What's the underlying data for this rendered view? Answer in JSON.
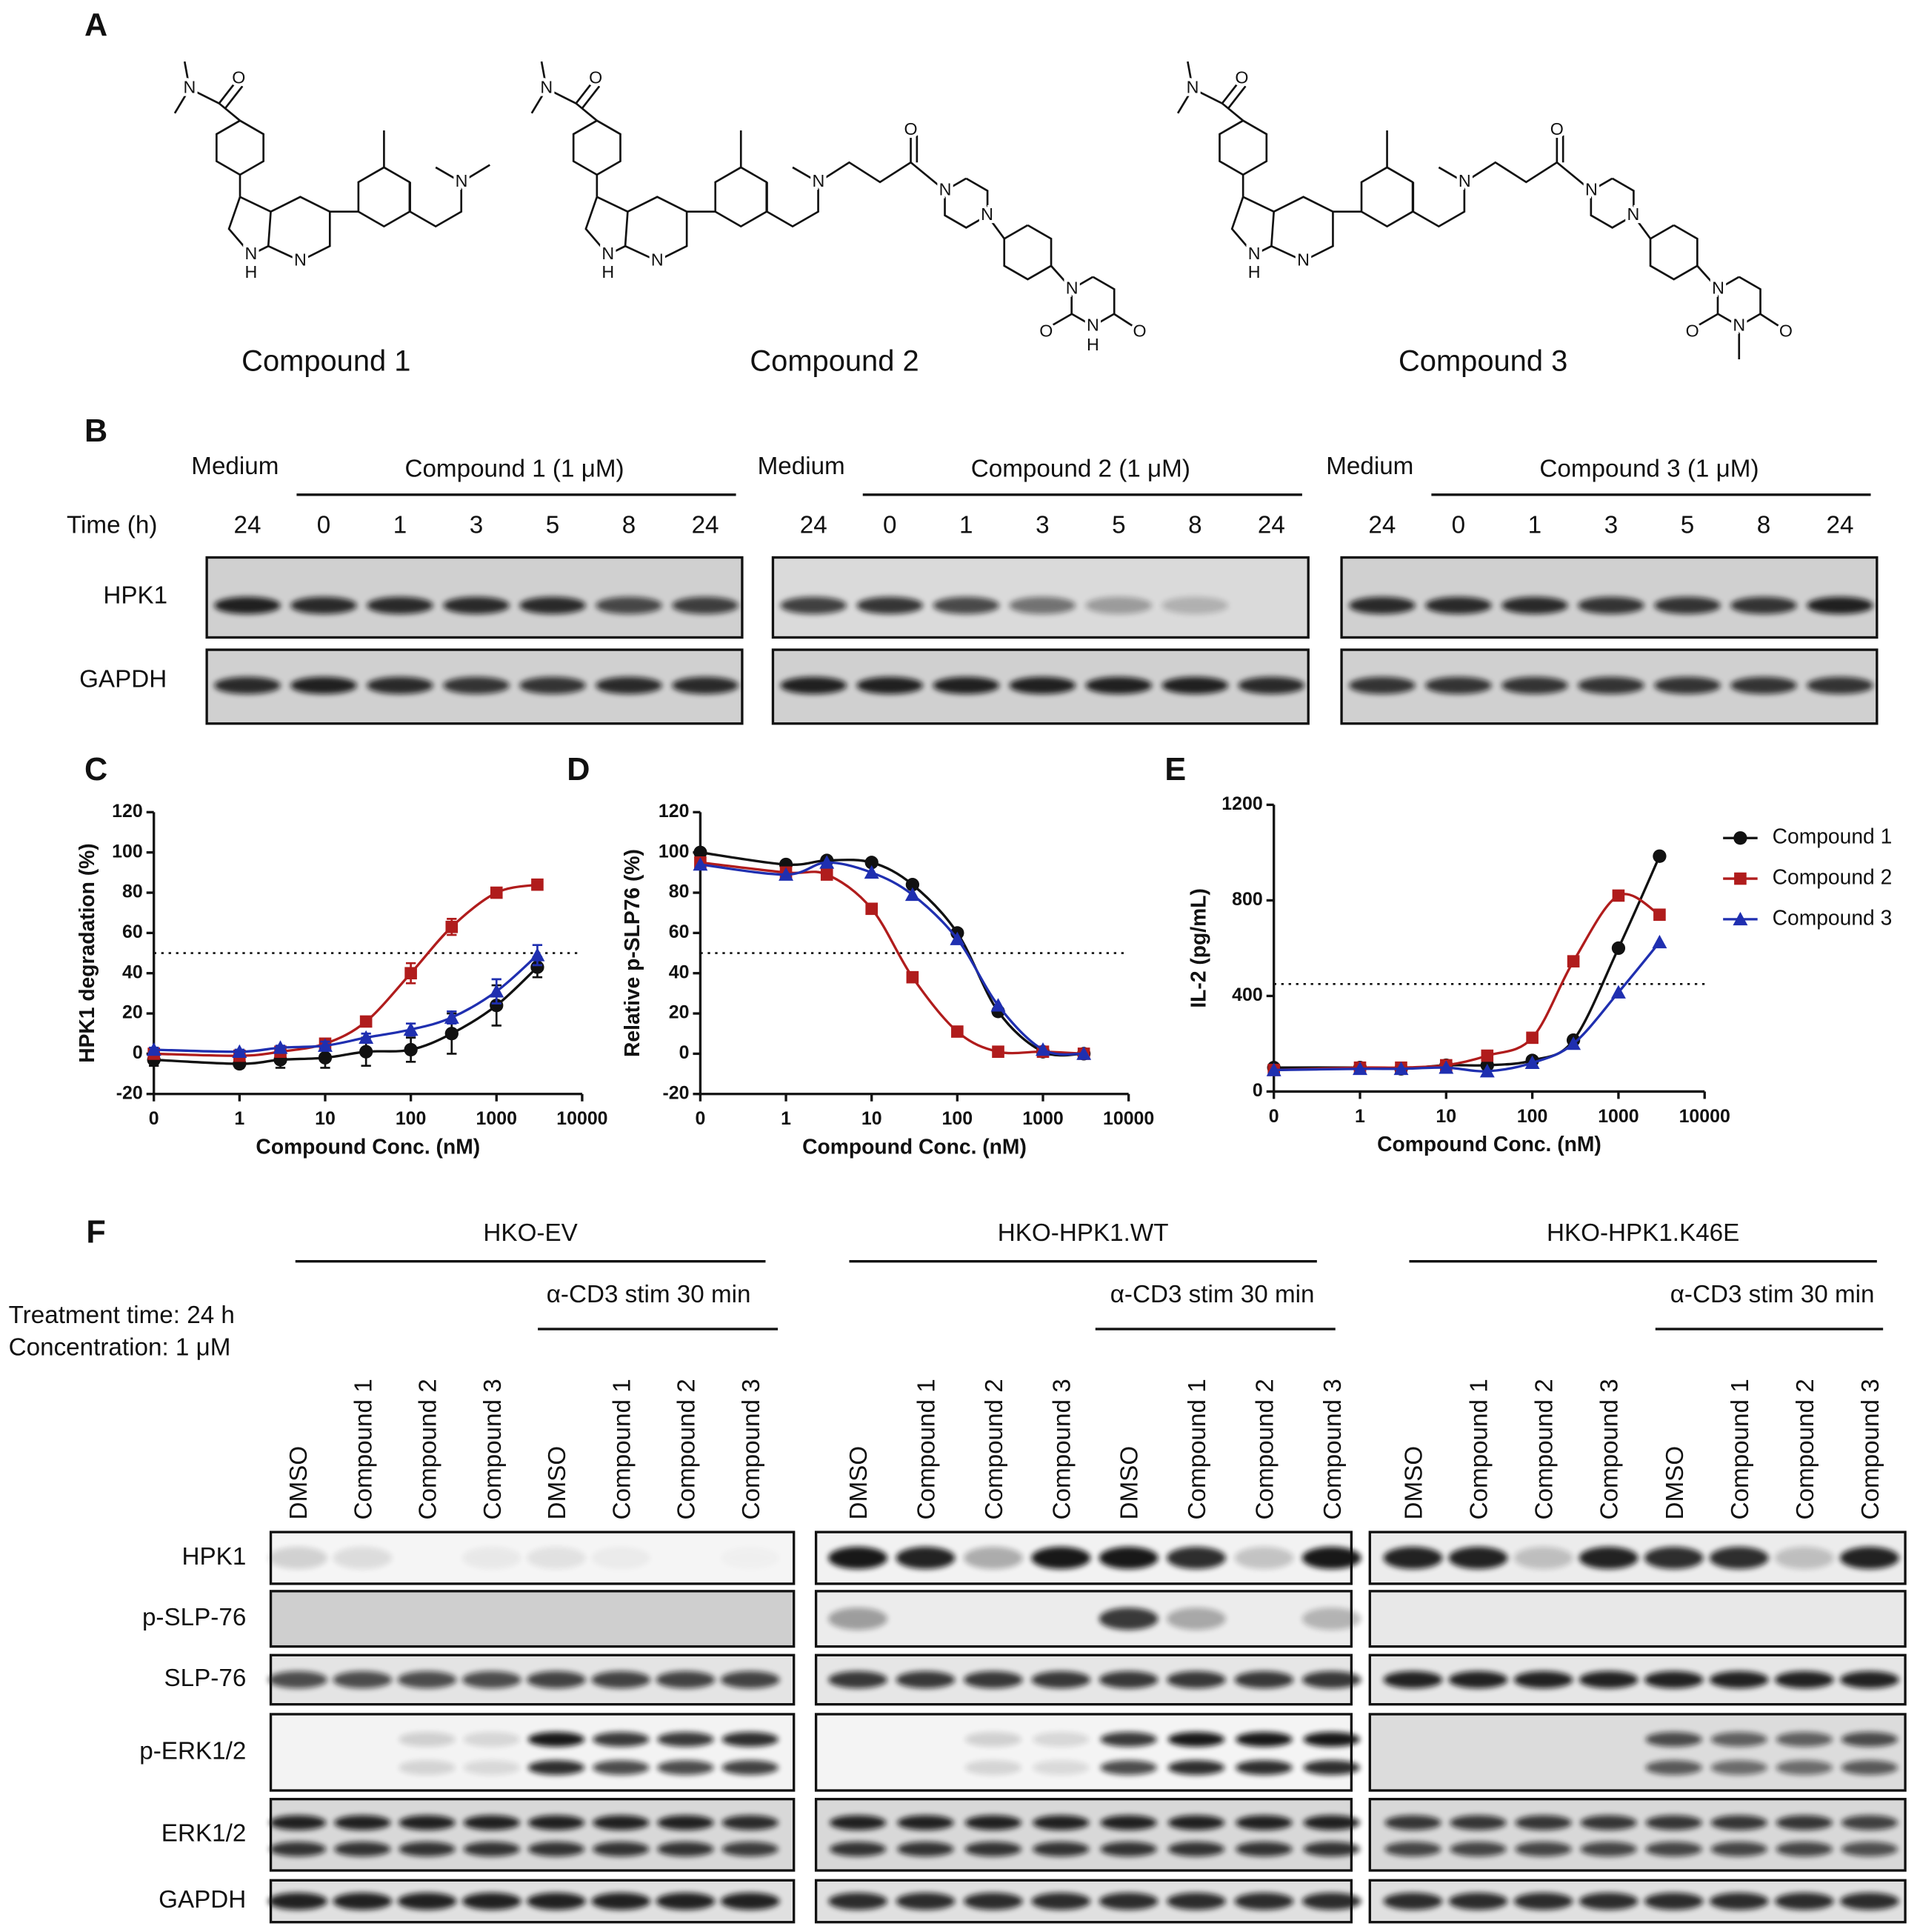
{
  "panel_labels": [
    "A",
    "B",
    "F"
  ],
  "structures": [
    {
      "name": "Compound 1",
      "atoms": [
        "N",
        "O",
        "N",
        "H",
        "N",
        "N"
      ]
    },
    {
      "name": "Compound 2",
      "atoms": [
        "N",
        "O",
        "N",
        "H",
        "N",
        "N",
        "O",
        "N",
        "N",
        "N",
        "O",
        "N",
        "H",
        "O"
      ]
    },
    {
      "name": "Compound  3",
      "atoms": [
        "N",
        "O",
        "N",
        "H",
        "N",
        "N",
        "O",
        "N",
        "N",
        "N",
        "O",
        "N",
        "O"
      ]
    }
  ],
  "blot_b": {
    "time_label": "Time (h)",
    "rows": [
      "HPK1",
      "GAPDH"
    ],
    "groups": [
      {
        "medium": "Medium",
        "treatment": "Compound 1 (1 μM)",
        "times": [
          24,
          0,
          1,
          3,
          5,
          8,
          24
        ]
      },
      {
        "medium": "Medium",
        "treatment": "Compound 2 (1 μM)",
        "times": [
          24,
          0,
          1,
          3,
          5,
          8,
          24
        ]
      },
      {
        "medium": "Medium",
        "treatment": "Compound  3 (1 μM)",
        "times": [
          24,
          0,
          1,
          3,
          5,
          8,
          24
        ]
      }
    ]
  },
  "blot_f": {
    "treatment_time": "Treatment time: 24 h",
    "concentration": "Concentration: 1 μM",
    "rows": [
      "HPK1",
      "p-SLP-76",
      "SLP-76",
      "p-ERK1/2",
      "ERK1/2",
      "GAPDH"
    ],
    "groups": [
      {
        "name": "HKO-EV",
        "stim": "α-CD3 stim 30 min",
        "lanes": [
          "DMSO",
          "Compound 1",
          "Compound 2",
          "Compound 3",
          "DMSO",
          "Compound 1",
          "Compound 2",
          "Compound 3"
        ]
      },
      {
        "name": "HKO-HPK1.WT",
        "stim": "α-CD3 stim 30 min",
        "lanes": [
          "DMSO",
          "Compound 1",
          "Compound 2",
          "Compound 3",
          "DMSO",
          "Compound 1",
          "Compound 2",
          "Compound 3"
        ]
      },
      {
        "name": "HKO-HPK1.K46E",
        "stim": "α-CD3 stim 30 min",
        "lanes": [
          "DMSO",
          "Compound 1",
          "Compound 2",
          "Compound 3",
          "DMSO",
          "Compound 1",
          "Compound 2",
          "Compound 3"
        ]
      }
    ]
  },
  "chart_data": [
    {
      "type": "line",
      "label": "C",
      "ylabel": "HPK1 degradation (%)",
      "xlabel": "Compound Conc. (nM)",
      "xscale": "log",
      "x": [
        0,
        1,
        3,
        10,
        30,
        100,
        300,
        1000,
        3000
      ],
      "xlim": [
        0,
        10000
      ],
      "xticks": [
        0,
        1,
        10,
        100,
        1000,
        10000
      ],
      "ylim": [
        -20,
        120
      ],
      "yticks": [
        -20,
        0,
        20,
        40,
        60,
        80,
        100,
        120
      ],
      "hline": 50,
      "series": [
        {
          "color": "#111111",
          "marker": "circle",
          "values": [
            -3,
            -5,
            -3,
            -2,
            1,
            2,
            10,
            24,
            43
          ],
          "errors": [
            3,
            2,
            4,
            5,
            7,
            6,
            10,
            10,
            5
          ]
        },
        {
          "color": "#b01c1c",
          "marker": "square",
          "values": [
            0,
            -1,
            1,
            5,
            16,
            40,
            63,
            80,
            84
          ],
          "errors": [
            1,
            1,
            1,
            2,
            2,
            5,
            4,
            2,
            1
          ]
        },
        {
          "color": "#1f2fb0",
          "marker": "triangle",
          "values": [
            2,
            1,
            3,
            4,
            8,
            12,
            18,
            31,
            49
          ],
          "errors": [
            1,
            1,
            1,
            2,
            2,
            3,
            3,
            6,
            5
          ]
        }
      ]
    },
    {
      "type": "line",
      "label": "D",
      "ylabel": "Relative p-SLP76 (%)",
      "xlabel": "Compound Conc. (nM)",
      "xscale": "log",
      "x": [
        0,
        1,
        3,
        10,
        30,
        100,
        300,
        1000,
        3000
      ],
      "xlim": [
        0,
        10000
      ],
      "xticks": [
        0,
        1,
        10,
        100,
        1000,
        10000
      ],
      "ylim": [
        -20,
        120
      ],
      "yticks": [
        -20,
        0,
        20,
        40,
        60,
        80,
        100,
        120
      ],
      "hline": 50,
      "series": [
        {
          "color": "#111111",
          "marker": "circle",
          "values": [
            100,
            94,
            96,
            95,
            84,
            60,
            21,
            1,
            0
          ]
        },
        {
          "color": "#b01c1c",
          "marker": "square",
          "values": [
            95,
            90,
            89,
            72,
            38,
            11,
            1,
            1,
            0
          ]
        },
        {
          "color": "#1f2fb0",
          "marker": "triangle",
          "values": [
            94,
            89,
            95,
            90,
            79,
            57,
            24,
            2,
            0
          ]
        }
      ]
    },
    {
      "type": "line",
      "label": "E",
      "ylabel": "IL-2 (pg/mL)",
      "xlabel": "Compound Conc. (nM)",
      "xscale": "log",
      "x": [
        0,
        1,
        3,
        10,
        30,
        100,
        300,
        1000,
        3000
      ],
      "xlim": [
        0,
        10000
      ],
      "xticks": [
        0,
        1,
        10,
        100,
        1000,
        10000
      ],
      "ylim": [
        0,
        1200
      ],
      "yticks": [
        0,
        400,
        800,
        1200
      ],
      "hline": 450,
      "legend": "right",
      "series": [
        {
          "name": "Compound 1",
          "color": "#111111",
          "marker": "circle",
          "values": [
            100,
            100,
            95,
            110,
            110,
            130,
            215,
            600,
            985
          ]
        },
        {
          "name": "Compound 2",
          "color": "#b01c1c",
          "marker": "square",
          "values": [
            90,
            100,
            100,
            110,
            150,
            225,
            545,
            820,
            740
          ]
        },
        {
          "name": "Compound 3",
          "color": "#1f2fb0",
          "marker": "triangle",
          "values": [
            90,
            95,
            95,
            100,
            85,
            120,
            200,
            415,
            625
          ]
        }
      ]
    }
  ]
}
